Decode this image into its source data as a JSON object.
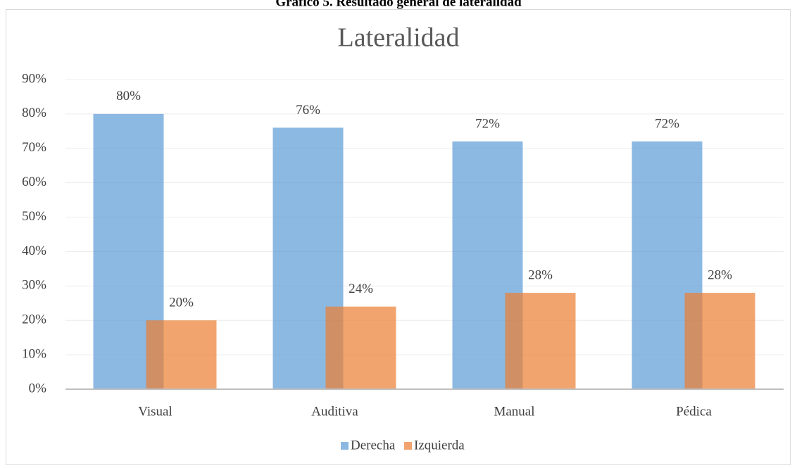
{
  "chart_data": {
    "type": "bar",
    "caption": "Gráfico 5. Resultado general de lateralidad",
    "title": "Lateralidad",
    "categories": [
      "Visual",
      "Auditiva",
      "Manual",
      "Pédica"
    ],
    "series": [
      {
        "name": "Derecha",
        "color": "#5b9bd5",
        "values": [
          80,
          76,
          72,
          72
        ],
        "value_labels": [
          "80%",
          "76%",
          "72%",
          "72%"
        ]
      },
      {
        "name": "Izquierda",
        "color": "#ed7d31",
        "values": [
          20,
          24,
          28,
          28
        ],
        "value_labels": [
          "20%",
          "24%",
          "28%",
          "28%"
        ]
      }
    ],
    "ylim": [
      0,
      90
    ],
    "yticks": [
      {
        "value": 0,
        "label": "0%"
      },
      {
        "value": 10,
        "label": "10%"
      },
      {
        "value": 20,
        "label": "20%"
      },
      {
        "value": 30,
        "label": "30%"
      },
      {
        "value": 40,
        "label": "40%"
      },
      {
        "value": 50,
        "label": "50%"
      },
      {
        "value": 60,
        "label": "60%"
      },
      {
        "value": 70,
        "label": "70%"
      },
      {
        "value": 80,
        "label": "80%"
      },
      {
        "value": 90,
        "label": "90%"
      }
    ],
    "grid": true,
    "legend": "bottom"
  }
}
